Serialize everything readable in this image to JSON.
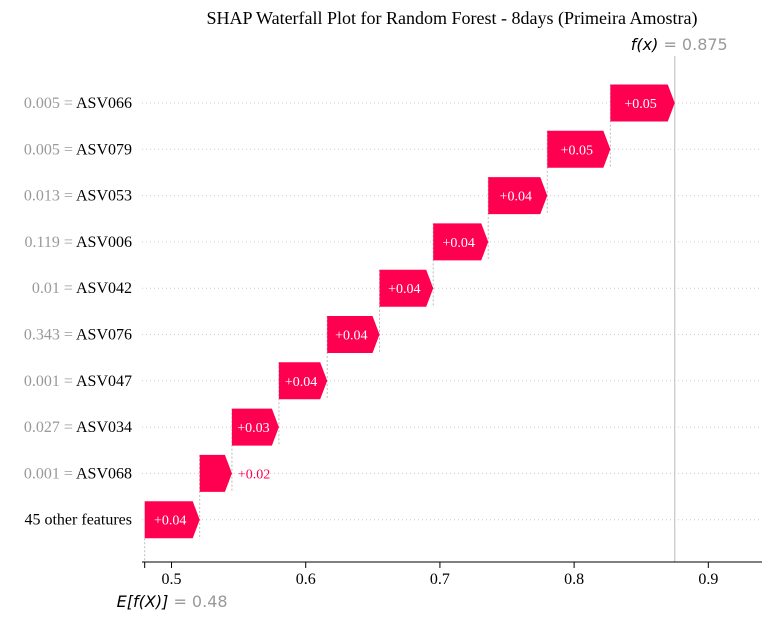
{
  "chart_data": {
    "type": "waterfall",
    "title": "SHAP Waterfall Plot for Random Forest - 8days (Primeira Amostra)",
    "xlabel": "",
    "ylabel": "",
    "xlim": [
      0.478,
      0.94
    ],
    "xticks": [
      0.5,
      0.6,
      0.7,
      0.8,
      0.9
    ],
    "x_tick_labels": [
      "0.5",
      "0.6",
      "0.7",
      "0.8",
      "0.9"
    ],
    "grid": false,
    "positive_color": "#ff0051",
    "base_value": 0.48,
    "base_value_label": "= 0.48",
    "base_label_symbol": "E[f(X)]",
    "output_value": 0.875,
    "output_value_label": "= 0.875",
    "output_label_symbol": "f(x)",
    "features": [
      {
        "value_label": "0.005 =",
        "name": "ASV066",
        "shap": 0.053,
        "label": "+0.05"
      },
      {
        "value_label": "0.005 =",
        "name": "ASV079",
        "shap": 0.047,
        "label": "+0.05"
      },
      {
        "value_label": "0.013 =",
        "name": "ASV053",
        "shap": 0.044,
        "label": "+0.04"
      },
      {
        "value_label": "0.119 =",
        "name": "ASV006",
        "shap": 0.041,
        "label": "+0.04"
      },
      {
        "value_label": "0.01 =",
        "name": "ASV042",
        "shap": 0.04,
        "label": "+0.04"
      },
      {
        "value_label": "0.343 =",
        "name": "ASV076",
        "shap": 0.039,
        "label": "+0.04"
      },
      {
        "value_label": "0.001 =",
        "name": "ASV047",
        "shap": 0.036,
        "label": "+0.04"
      },
      {
        "value_label": "0.027 =",
        "name": "ASV034",
        "shap": 0.035,
        "label": "+0.03"
      },
      {
        "value_label": "0.001 =",
        "name": "ASV068",
        "shap": 0.024,
        "label": "+0.02"
      },
      {
        "value_label": "",
        "name": "45 other features",
        "shap": 0.041,
        "label": "+0.04"
      }
    ]
  }
}
